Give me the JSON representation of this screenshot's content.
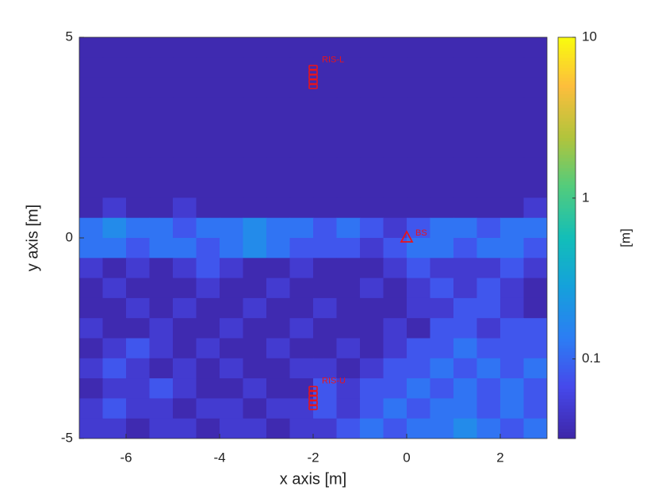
{
  "chart_data": {
    "type": "heatmap",
    "xlabel": "x axis [m]",
    "ylabel": "y axis [m]",
    "colorbar_label": "[m]",
    "xlim": [
      -7,
      3
    ],
    "ylim": [
      -5,
      5
    ],
    "xticks": [
      -6,
      -4,
      -2,
      0,
      2
    ],
    "yticks": [
      -5,
      0,
      5
    ],
    "clim": [
      0.032,
      10
    ],
    "cticks": [
      0.1,
      1,
      10
    ],
    "color_scale": "log",
    "colormap": "parula",
    "x": [
      -6.75,
      -6.25,
      -5.75,
      -5.25,
      -4.75,
      -4.25,
      -3.75,
      -3.25,
      -2.75,
      -2.25,
      -1.75,
      -1.25,
      -0.75,
      -0.25,
      0.25,
      0.75,
      1.25,
      1.75,
      2.25,
      2.75
    ],
    "y": [
      4.75,
      4.25,
      3.75,
      3.25,
      2.75,
      2.25,
      1.75,
      1.25,
      0.75,
      0.25,
      -0.25,
      -0.75,
      -1.25,
      -1.75,
      -2.25,
      -2.75,
      -3.25,
      -3.75,
      -4.25,
      -4.75
    ],
    "z": [
      [
        0.035,
        0.035,
        0.035,
        0.035,
        0.035,
        0.035,
        0.035,
        0.035,
        0.035,
        0.035,
        0.035,
        0.035,
        0.035,
        0.035,
        0.035,
        0.035,
        0.035,
        0.035,
        0.035,
        0.035
      ],
      [
        0.035,
        0.035,
        0.035,
        0.035,
        0.035,
        0.035,
        0.035,
        0.035,
        0.035,
        0.035,
        0.035,
        0.035,
        0.035,
        0.035,
        0.035,
        0.035,
        0.035,
        0.035,
        0.035,
        0.035
      ],
      [
        0.035,
        0.035,
        0.035,
        0.035,
        0.035,
        0.035,
        0.035,
        0.035,
        0.035,
        0.035,
        0.035,
        0.035,
        0.035,
        0.035,
        0.035,
        0.035,
        0.035,
        0.035,
        0.035,
        0.035
      ],
      [
        0.035,
        0.035,
        0.035,
        0.035,
        0.035,
        0.035,
        0.035,
        0.035,
        0.035,
        0.035,
        0.035,
        0.035,
        0.035,
        0.035,
        0.035,
        0.035,
        0.035,
        0.035,
        0.035,
        0.035
      ],
      [
        0.035,
        0.035,
        0.035,
        0.035,
        0.035,
        0.035,
        0.035,
        0.035,
        0.035,
        0.035,
        0.035,
        0.035,
        0.035,
        0.035,
        0.035,
        0.035,
        0.035,
        0.035,
        0.035,
        0.035
      ],
      [
        0.035,
        0.035,
        0.035,
        0.035,
        0.035,
        0.035,
        0.035,
        0.035,
        0.035,
        0.035,
        0.035,
        0.035,
        0.035,
        0.035,
        0.035,
        0.035,
        0.035,
        0.035,
        0.035,
        0.035
      ],
      [
        0.035,
        0.035,
        0.035,
        0.035,
        0.035,
        0.035,
        0.035,
        0.035,
        0.035,
        0.035,
        0.035,
        0.035,
        0.035,
        0.035,
        0.035,
        0.035,
        0.035,
        0.035,
        0.035,
        0.035
      ],
      [
        0.035,
        0.035,
        0.035,
        0.035,
        0.035,
        0.035,
        0.035,
        0.035,
        0.035,
        0.035,
        0.035,
        0.035,
        0.035,
        0.035,
        0.035,
        0.035,
        0.035,
        0.035,
        0.035,
        0.035
      ],
      [
        0.035,
        0.05,
        0.035,
        0.035,
        0.05,
        0.035,
        0.035,
        0.035,
        0.035,
        0.035,
        0.035,
        0.035,
        0.035,
        0.035,
        0.035,
        0.035,
        0.035,
        0.035,
        0.035,
        0.05
      ],
      [
        0.12,
        0.18,
        0.12,
        0.12,
        0.08,
        0.12,
        0.12,
        0.18,
        0.12,
        0.12,
        0.08,
        0.12,
        0.08,
        0.05,
        0.08,
        0.12,
        0.12,
        0.08,
        0.12,
        0.12
      ],
      [
        0.12,
        0.12,
        0.08,
        0.12,
        0.12,
        0.08,
        0.12,
        0.18,
        0.12,
        0.08,
        0.08,
        0.08,
        0.05,
        0.08,
        0.12,
        0.12,
        0.08,
        0.12,
        0.12,
        0.08
      ],
      [
        0.05,
        0.035,
        0.05,
        0.035,
        0.05,
        0.08,
        0.05,
        0.035,
        0.035,
        0.05,
        0.035,
        0.035,
        0.035,
        0.05,
        0.08,
        0.05,
        0.05,
        0.05,
        0.08,
        0.05
      ],
      [
        0.035,
        0.05,
        0.035,
        0.035,
        0.035,
        0.05,
        0.035,
        0.035,
        0.05,
        0.035,
        0.035,
        0.035,
        0.05,
        0.035,
        0.05,
        0.08,
        0.05,
        0.08,
        0.05,
        0.035
      ],
      [
        0.035,
        0.035,
        0.05,
        0.035,
        0.05,
        0.035,
        0.035,
        0.05,
        0.035,
        0.035,
        0.05,
        0.035,
        0.035,
        0.035,
        0.05,
        0.05,
        0.08,
        0.08,
        0.05,
        0.035
      ],
      [
        0.05,
        0.035,
        0.035,
        0.05,
        0.035,
        0.035,
        0.05,
        0.035,
        0.035,
        0.05,
        0.035,
        0.035,
        0.035,
        0.05,
        0.035,
        0.08,
        0.08,
        0.05,
        0.08,
        0.08
      ],
      [
        0.035,
        0.05,
        0.08,
        0.05,
        0.035,
        0.05,
        0.035,
        0.035,
        0.05,
        0.035,
        0.035,
        0.05,
        0.035,
        0.05,
        0.08,
        0.08,
        0.12,
        0.08,
        0.08,
        0.08
      ],
      [
        0.05,
        0.08,
        0.05,
        0.035,
        0.05,
        0.035,
        0.05,
        0.035,
        0.035,
        0.05,
        0.05,
        0.035,
        0.05,
        0.08,
        0.08,
        0.12,
        0.08,
        0.12,
        0.08,
        0.12
      ],
      [
        0.035,
        0.05,
        0.05,
        0.08,
        0.05,
        0.035,
        0.035,
        0.05,
        0.035,
        0.035,
        0.08,
        0.05,
        0.08,
        0.08,
        0.12,
        0.08,
        0.12,
        0.08,
        0.12,
        0.08
      ],
      [
        0.05,
        0.08,
        0.05,
        0.05,
        0.035,
        0.05,
        0.05,
        0.035,
        0.05,
        0.05,
        0.08,
        0.05,
        0.08,
        0.12,
        0.08,
        0.12,
        0.12,
        0.08,
        0.12,
        0.08
      ],
      [
        0.05,
        0.05,
        0.035,
        0.05,
        0.05,
        0.035,
        0.05,
        0.05,
        0.035,
        0.05,
        0.05,
        0.08,
        0.12,
        0.08,
        0.12,
        0.12,
        0.18,
        0.12,
        0.08,
        0.12
      ]
    ],
    "markers": [
      {
        "label": "RIS-L",
        "x": -2,
        "y": 4,
        "marker": "square",
        "color": "#e8141c"
      },
      {
        "label": "BS",
        "x": 0,
        "y": 0,
        "marker": "triangle",
        "color": "#e8141c"
      },
      {
        "label": "RIS-U",
        "x": -2,
        "y": -4,
        "marker": "square",
        "color": "#e8141c"
      }
    ]
  }
}
